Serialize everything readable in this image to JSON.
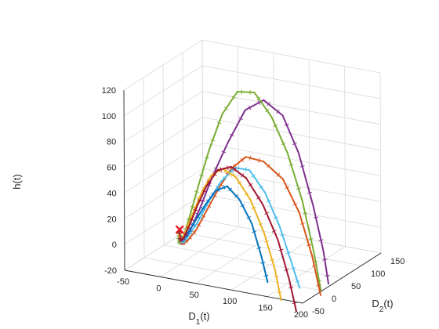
{
  "chart_data": {
    "type": "line",
    "subtype": "3d",
    "title": "",
    "xlabel": "D_1(t)",
    "ylabel": "D_2(t)",
    "zlabel": "h(t)",
    "xlim": [
      -50,
      200
    ],
    "ylim": [
      -50,
      150
    ],
    "zlim": [
      -20,
      120
    ],
    "x_ticks": [
      "-50",
      "0",
      "50",
      "100",
      "150",
      "200"
    ],
    "y_ticks": [
      "-50",
      "0",
      "50",
      "100",
      "150"
    ],
    "z_ticks": [
      "-20",
      "0",
      "20",
      "40",
      "60",
      "80",
      "100",
      "120"
    ],
    "grid": true,
    "legend": "none",
    "equilibrium_marker": {
      "symbol": "x",
      "color": "#e8141c",
      "point": [
        0,
        0,
        7
      ]
    },
    "series": [
      {
        "color": "#7e2f8e",
        "points": [
          [
            195,
            25,
            -20
          ],
          [
            190,
            22,
            5
          ],
          [
            178,
            18,
            40
          ],
          [
            160,
            14,
            80
          ],
          [
            140,
            10,
            108
          ],
          [
            115,
            7,
            118
          ],
          [
            90,
            5,
            108
          ],
          [
            66,
            3,
            80
          ],
          [
            45,
            2,
            52
          ],
          [
            28,
            1,
            26
          ],
          [
            15,
            0,
            8
          ],
          [
            6,
            0,
            -2
          ],
          [
            2,
            0,
            -4
          ],
          [
            0,
            1,
            0
          ],
          [
            -1,
            1,
            6
          ]
        ]
      },
      {
        "color": "#77ac30",
        "points": [
          [
            165,
            60,
            -35
          ],
          [
            158,
            55,
            -5
          ],
          [
            146,
            48,
            35
          ],
          [
            130,
            40,
            72
          ],
          [
            112,
            32,
            100
          ],
          [
            92,
            25,
            118
          ],
          [
            72,
            18,
            118
          ],
          [
            54,
            12,
            100
          ],
          [
            38,
            8,
            72
          ],
          [
            25,
            4,
            44
          ],
          [
            14,
            2,
            20
          ],
          [
            6,
            1,
            4
          ],
          [
            1,
            0,
            -4
          ],
          [
            -2,
            0,
            -2
          ],
          [
            -1,
            1,
            5
          ]
        ]
      },
      {
        "color": "#d95319",
        "points": [
          [
            195,
            5,
            -25
          ],
          [
            185,
            2,
            5
          ],
          [
            170,
            -3,
            38
          ],
          [
            150,
            -8,
            63
          ],
          [
            125,
            -12,
            75
          ],
          [
            100,
            -12,
            76
          ],
          [
            78,
            -10,
            64
          ],
          [
            58,
            -8,
            45
          ],
          [
            40,
            -5,
            26
          ],
          [
            25,
            -3,
            10
          ],
          [
            12,
            -1,
            0
          ],
          [
            4,
            0,
            -4
          ],
          [
            0,
            0,
            0
          ],
          [
            -1,
            1,
            6
          ]
        ]
      },
      {
        "color": "#4dbeee",
        "points": [
          [
            160,
            15,
            -25
          ],
          [
            150,
            12,
            -5
          ],
          [
            136,
            8,
            22
          ],
          [
            118,
            4,
            47
          ],
          [
            98,
            1,
            63
          ],
          [
            78,
            0,
            63
          ],
          [
            58,
            0,
            50
          ],
          [
            40,
            0,
            32
          ],
          [
            25,
            0,
            15
          ],
          [
            12,
            0,
            3
          ],
          [
            4,
            0,
            -3
          ],
          [
            0,
            0,
            0
          ],
          [
            -1,
            1,
            6
          ]
        ]
      },
      {
        "color": "#0072bd",
        "points": [
          [
            115,
            15,
            -25
          ],
          [
            108,
            12,
            -5
          ],
          [
            97,
            8,
            20
          ],
          [
            82,
            4,
            38
          ],
          [
            66,
            2,
            47
          ],
          [
            50,
            1,
            42
          ],
          [
            36,
            1,
            30
          ],
          [
            22,
            0,
            16
          ],
          [
            11,
            0,
            5
          ],
          [
            4,
            0,
            -1
          ],
          [
            0,
            0,
            1
          ],
          [
            -1,
            1,
            6
          ]
        ]
      },
      {
        "color": "#edb120",
        "points": [
          [
            145,
            -5,
            -32
          ],
          [
            138,
            -8,
            -8
          ],
          [
            125,
            -12,
            20
          ],
          [
            108,
            -15,
            44
          ],
          [
            88,
            -16,
            60
          ],
          [
            68,
            -14,
            64
          ],
          [
            50,
            -10,
            56
          ],
          [
            34,
            -6,
            40
          ],
          [
            20,
            -3,
            22
          ],
          [
            9,
            -1,
            7
          ],
          [
            2,
            0,
            -1
          ],
          [
            -1,
            0,
            1
          ],
          [
            -1,
            1,
            6
          ]
        ]
      },
      {
        "color": "#a2142f",
        "points": [
          [
            180,
            -30,
            -32
          ],
          [
            172,
            -33,
            -8
          ],
          [
            158,
            -36,
            22
          ],
          [
            138,
            -38,
            48
          ],
          [
            115,
            -38,
            66
          ],
          [
            92,
            -35,
            72
          ],
          [
            70,
            -30,
            66
          ],
          [
            50,
            -22,
            50
          ],
          [
            33,
            -14,
            32
          ],
          [
            18,
            -7,
            14
          ],
          [
            7,
            -2,
            2
          ],
          [
            1,
            0,
            -2
          ],
          [
            -1,
            1,
            6
          ]
        ]
      }
    ]
  }
}
